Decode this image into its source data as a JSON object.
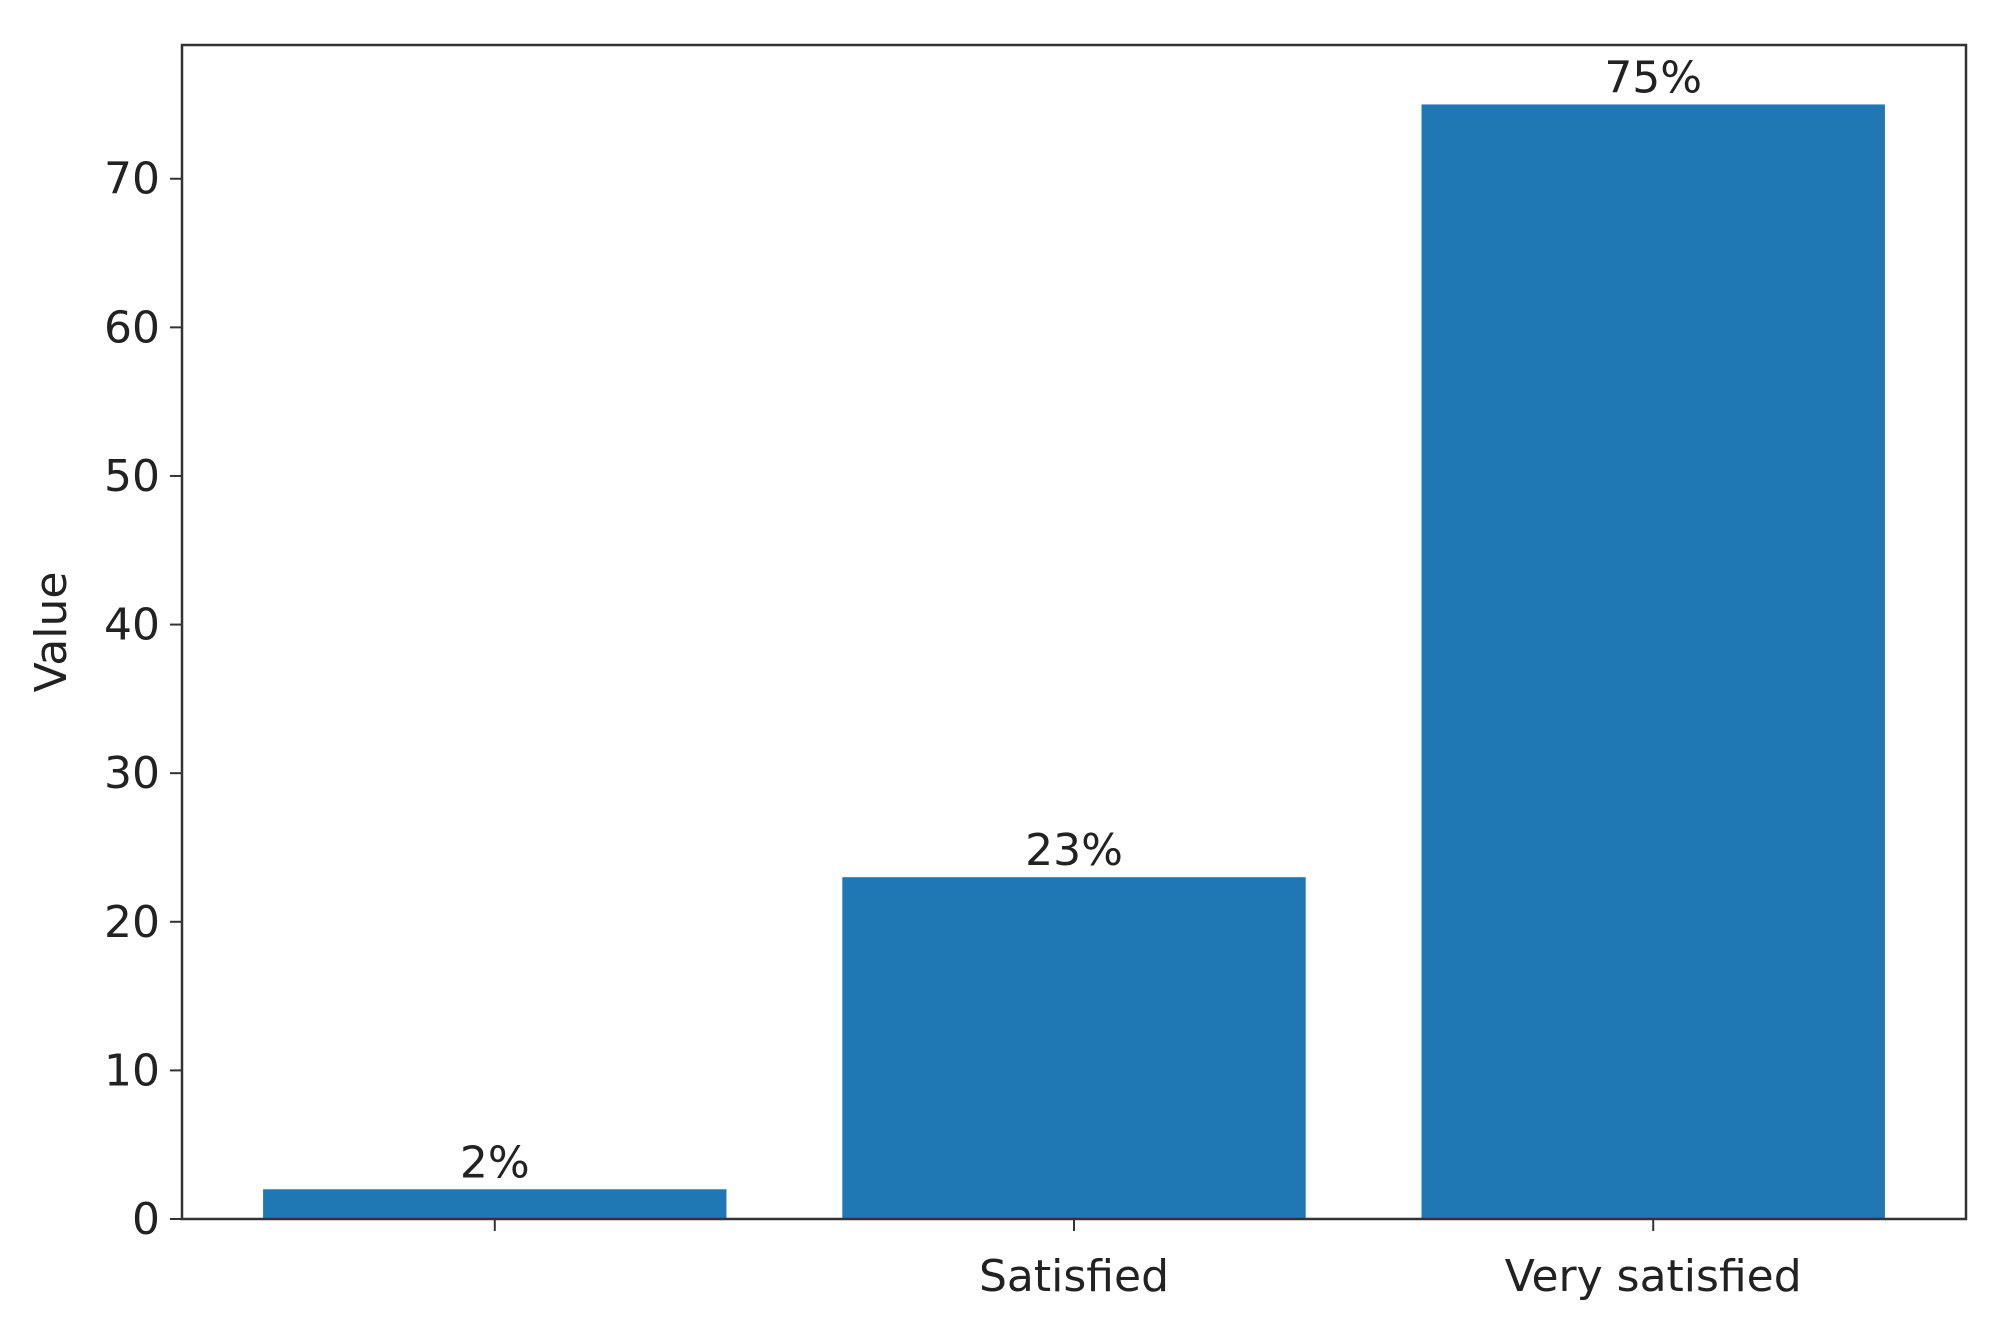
{
  "chart_data": {
    "type": "bar",
    "y_label": "Value",
    "categories": [
      null,
      "Satisfied",
      "Very satisfied"
    ],
    "values": [
      2,
      23,
      75
    ],
    "value_labels": [
      "2%",
      "23%",
      "75%"
    ],
    "color": "#1f77b4",
    "ylim": [
      0,
      79
    ],
    "yticks": [
      0,
      10,
      20,
      30,
      40,
      50,
      60,
      70
    ],
    "grid": false
  }
}
